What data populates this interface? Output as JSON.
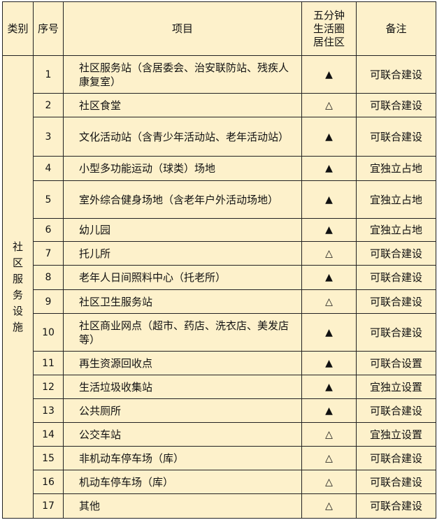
{
  "headers": {
    "category": "类别",
    "number": "序号",
    "item": "项目",
    "five_min": "五分钟生活圈居住区",
    "note": "备注"
  },
  "category": "社区服务设施",
  "legend_marks": {
    "required": "▲",
    "optional": "△"
  },
  "rows": [
    {
      "no": "1",
      "item": "社区服务站（含居委会、治安联防站、残疾人康复室）",
      "mark": "▲",
      "note": "可联合建设"
    },
    {
      "no": "2",
      "item": "社区食堂",
      "mark": "△",
      "note": "可联合建设"
    },
    {
      "no": "3",
      "item": "文化活动站（含青少年活动站、老年活动站）",
      "mark": "▲",
      "note": "可联合建设"
    },
    {
      "no": "4",
      "item": "小型多功能运动（球类）场地",
      "mark": "▲",
      "note": "宜独立占地"
    },
    {
      "no": "5",
      "item": "室外综合健身场地（含老年户外活动场地）",
      "mark": "▲",
      "note": "宜独立占地"
    },
    {
      "no": "6",
      "item": "幼儿园",
      "mark": "▲",
      "note": "宜独立占地"
    },
    {
      "no": "7",
      "item": "托儿所",
      "mark": "△",
      "note": "可联合建设"
    },
    {
      "no": "8",
      "item": "老年人日间照料中心（托老所）",
      "mark": "▲",
      "note": "可联合建设"
    },
    {
      "no": "9",
      "item": "社区卫生服务站",
      "mark": "△",
      "note": "可联合建设"
    },
    {
      "no": "10",
      "item": "社区商业网点（超市、药店、洗衣店、美发店等）",
      "mark": "▲",
      "note": "可联合建设"
    },
    {
      "no": "11",
      "item": "再生资源回收点",
      "mark": "▲",
      "note": "可联合设置"
    },
    {
      "no": "12",
      "item": "生活垃圾收集站",
      "mark": "▲",
      "note": "宜独立设置"
    },
    {
      "no": "13",
      "item": "公共厕所",
      "mark": "▲",
      "note": "可联合建设"
    },
    {
      "no": "14",
      "item": "公交车站",
      "mark": "△",
      "note": "宜独立设置"
    },
    {
      "no": "15",
      "item": "非机动车停车场（库）",
      "mark": "△",
      "note": "可联合建设"
    },
    {
      "no": "16",
      "item": "机动车停车场（库）",
      "mark": "△",
      "note": "可联合建设"
    },
    {
      "no": "17",
      "item": "其他",
      "mark": "△",
      "note": "可联合建设"
    }
  ]
}
